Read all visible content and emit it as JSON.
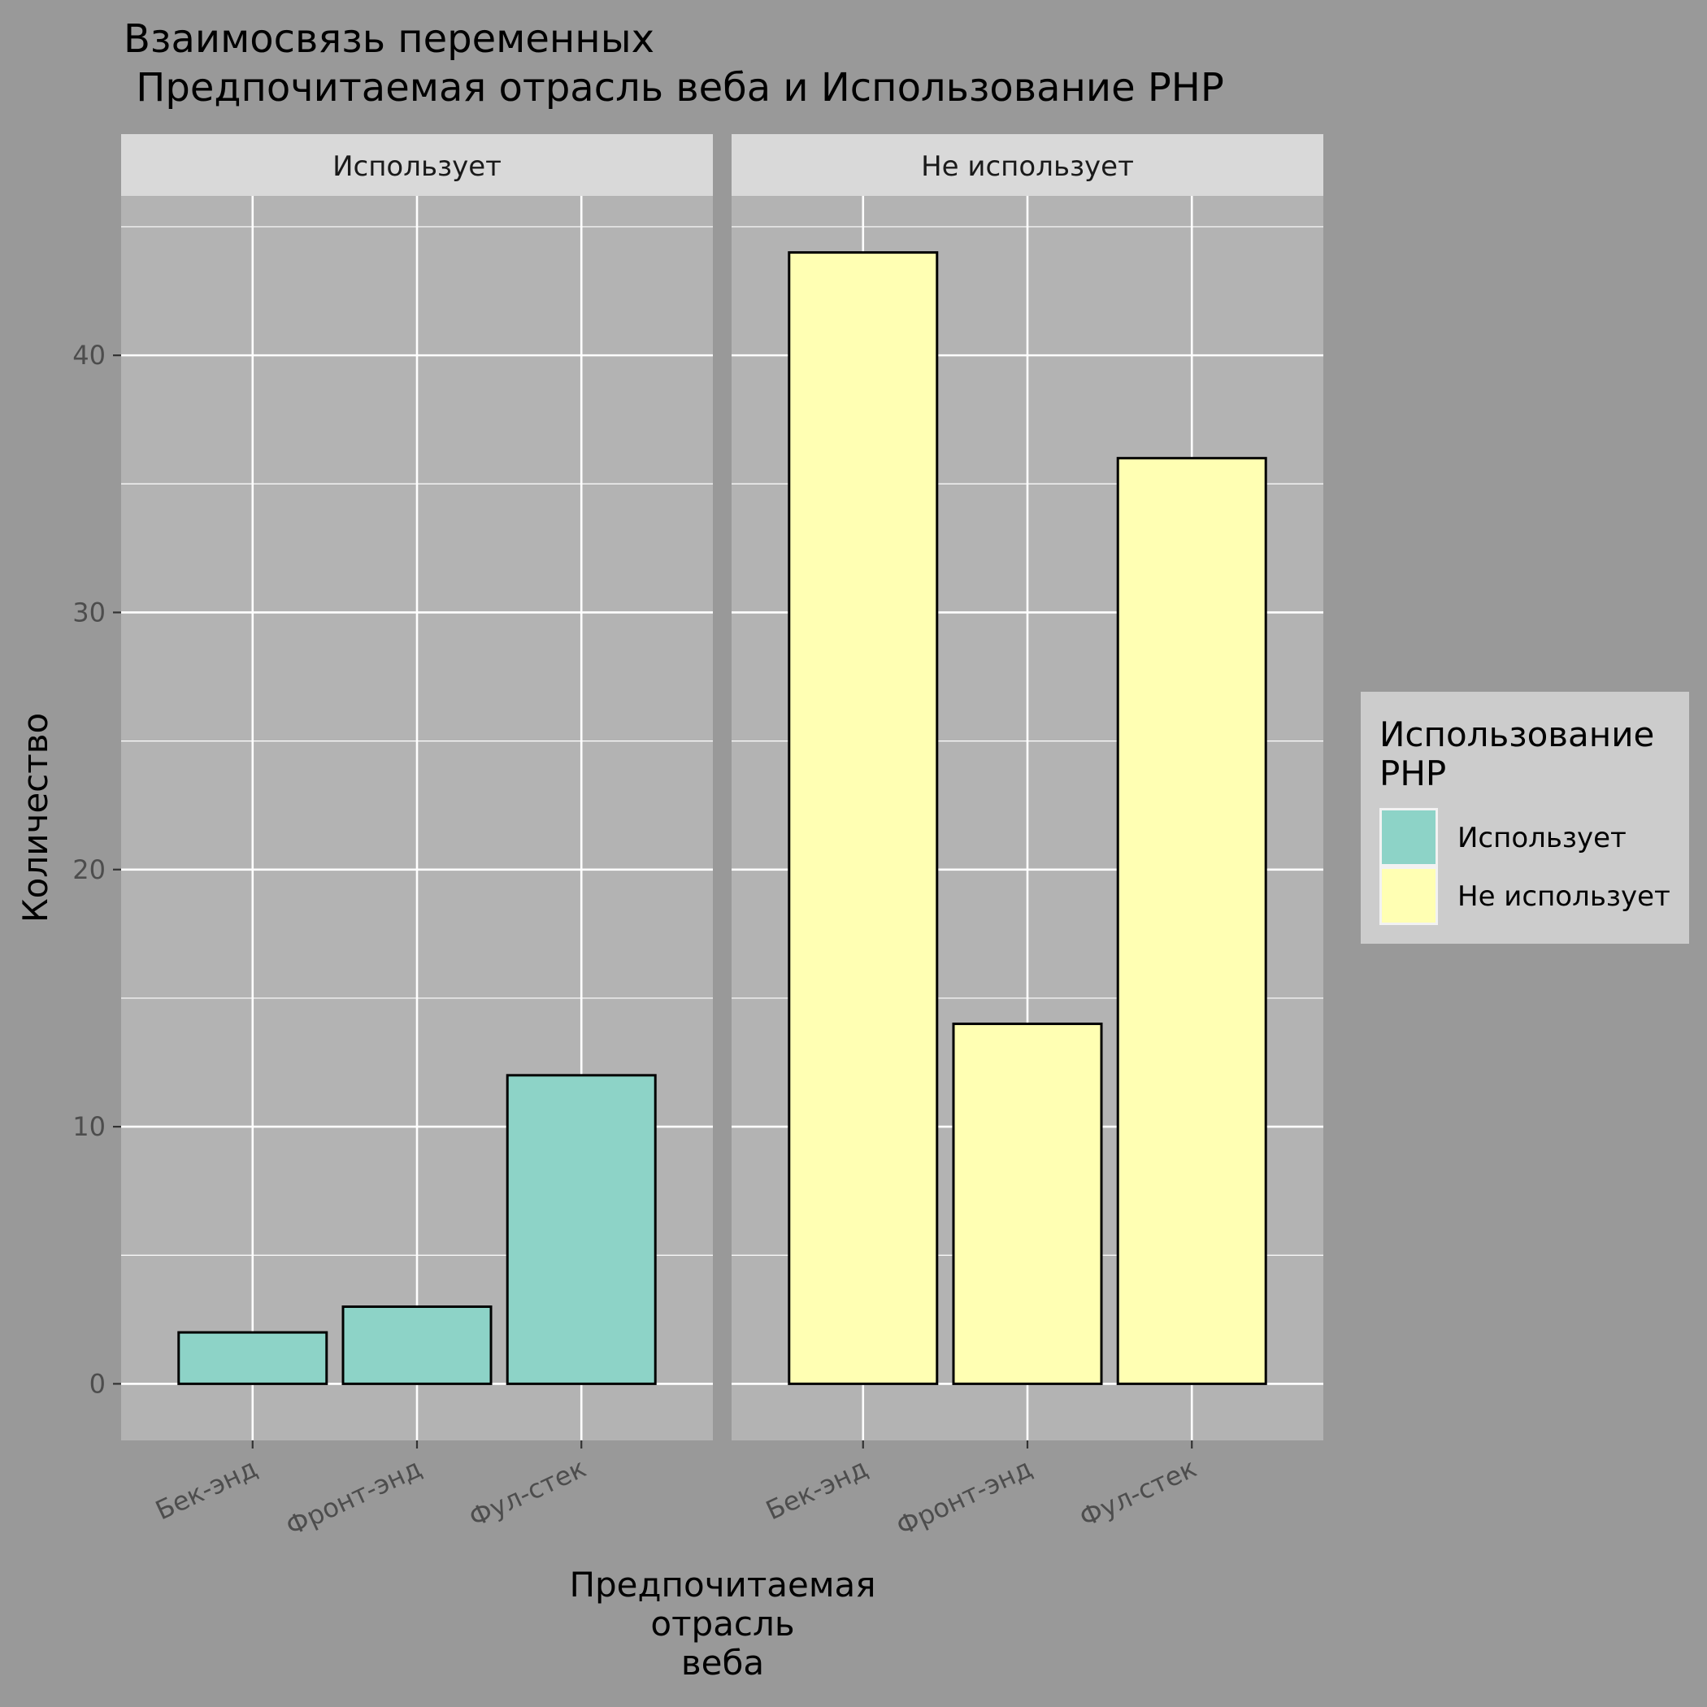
{
  "title_lines": [
    "Взаимосвязь переменных",
    " Предпочитаемая отрасль веба и Использование PHP"
  ],
  "colors": {
    "page_background": "#999999",
    "panel_background": "#b3b3b3",
    "strip_background": "#d9d9d9",
    "legend_background": "#cccccc",
    "grid_line": "#ffffff",
    "bar_outline": "#000000"
  },
  "chart_data": {
    "type": "bar",
    "facet_by": "Использование PHP",
    "panels": [
      {
        "name": "Использует",
        "categories": [
          "Бек-энд",
          "Фронт-энд",
          "Фул-стек"
        ],
        "values": [
          2,
          3,
          12
        ]
      },
      {
        "name": "Не использует",
        "categories": [
          "Бек-энд",
          "Фронт-энд",
          "Фул-стек"
        ],
        "values": [
          44,
          14,
          36
        ]
      }
    ],
    "xlabel_lines": [
      "Предпочитаемая",
      "отрасль",
      "веба"
    ],
    "ylabel": "Количество",
    "ylim": [
      -2.2,
      46.2
    ],
    "yticks": [
      0,
      10,
      20,
      30,
      40
    ],
    "ytick_labels": [
      "0",
      "10",
      "20",
      "30",
      "40"
    ],
    "grid": true,
    "legend": {
      "title_lines": [
        "Использование",
        "PHP"
      ],
      "placement": "right",
      "items": [
        {
          "label": "Использует",
          "color": "#8dd3c7"
        },
        {
          "label": "Не использует",
          "color": "#ffffb3"
        }
      ]
    }
  }
}
